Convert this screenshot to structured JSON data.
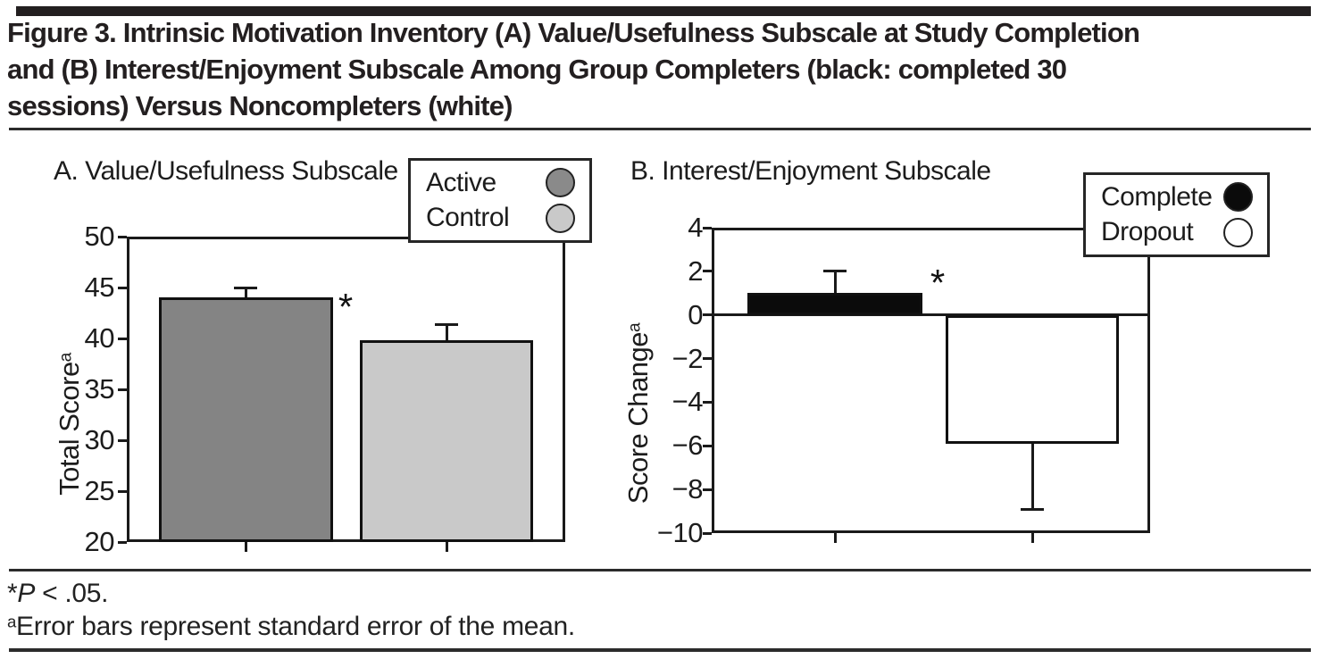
{
  "figure": {
    "title": "Figure 3. Intrinsic Motivation Inventory (A) Value/Usefulness Subscale at Study Completion and (B) Interest/Enjoyment Subscale Among Group Completers (black: completed 30 sessions) Versus Noncompleters (white)",
    "title_lines": [
      "Figure 3. Intrinsic Motivation Inventory (A) Value/Usefulness Subscale at Study Completion",
      "and (B) Interest/Enjoyment Subscale Among Group Completers (black: completed 30",
      "sessions) Versus Noncompleters (white)"
    ],
    "footnotes": {
      "significance": {
        "symbol": "*",
        "p": "P",
        "rest": " < .05."
      },
      "error_note": {
        "marker": "a",
        "text": "Error bars represent standard error of the mean."
      }
    }
  },
  "chart_data": [
    {
      "type": "bar",
      "panel": "A",
      "title": "A. Value/Usefulness Subscale",
      "xlabel": "",
      "ylabel": "Total Score",
      "ylabel_superscript": "a",
      "ylim": [
        20,
        50
      ],
      "yticks": [
        50,
        45,
        40,
        35,
        30,
        25,
        20
      ],
      "categories": [
        "Active",
        "Control"
      ],
      "series": [
        {
          "name": "Active",
          "value": 44.0,
          "sem": 1.0,
          "color": "#848484"
        },
        {
          "name": "Control",
          "value": 39.8,
          "sem": 1.6,
          "color": "#c9c9c9"
        }
      ],
      "significance_marker": "*",
      "grid": false,
      "legend_position": "top-right",
      "legend": [
        {
          "label": "Active",
          "color": "#8a8a8a"
        },
        {
          "label": "Control",
          "color": "#c9c9c9"
        }
      ]
    },
    {
      "type": "bar",
      "panel": "B",
      "title": "B. Interest/Enjoyment Subscale",
      "xlabel": "",
      "ylabel": "Score Change",
      "ylabel_superscript": "a",
      "ylim": [
        -10,
        4
      ],
      "yticks": [
        4,
        2,
        0,
        -2,
        -4,
        -6,
        -8,
        -10
      ],
      "categories": [
        "Complete",
        "Dropout"
      ],
      "series": [
        {
          "name": "Complete",
          "value": 1.0,
          "sem": 1.0,
          "color": "#0b0b0b"
        },
        {
          "name": "Dropout",
          "value": -5.9,
          "sem": 3.0,
          "color": "#ffffff"
        }
      ],
      "significance_marker": "*",
      "grid": false,
      "legend_position": "top-right",
      "legend": [
        {
          "label": "Complete",
          "color": "#0b0b0b"
        },
        {
          "label": "Dropout",
          "color": "#ffffff"
        }
      ]
    }
  ]
}
